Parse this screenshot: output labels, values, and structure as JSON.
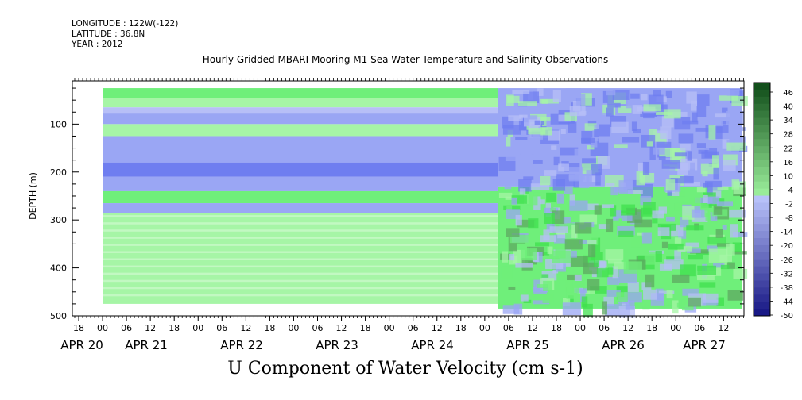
{
  "header": {
    "longitude": "LONGITUDE : 122W(-122)",
    "latitude": "LATITUDE : 36.8N",
    "year": "YEAR : 2012"
  },
  "chart_data": {
    "type": "heatmap",
    "title": "Hourly Gridded MBARI Mooring M1 Sea Water Temperature and Salinity Observations",
    "bottom_title": "U Component of Water Velocity (cm s-1)",
    "ylabel": "DEPTH (m)",
    "xlabel": "",
    "ylim": [
      500,
      10
    ],
    "y_ticks": [
      100,
      200,
      300,
      400,
      500
    ],
    "x_hour_labels": [
      "18",
      "00",
      "06",
      "12",
      "18",
      "00",
      "06",
      "12",
      "18",
      "00",
      "06",
      "12",
      "18",
      "00",
      "06",
      "12",
      "18",
      "00",
      "06",
      "12",
      "18",
      "00",
      "06",
      "12",
      "18",
      "00",
      "06",
      "12"
    ],
    "x_day_labels": [
      "APR 20",
      "APR 21",
      "APR 22",
      "APR 23",
      "APR 24",
      "APR 25",
      "APR 26",
      "APR 27"
    ],
    "colorbar": {
      "labels": [
        "46",
        "40",
        "34",
        "28",
        "22",
        "16",
        "10",
        "4",
        "-2",
        "-8",
        "-14",
        "-20",
        "-26",
        "-32",
        "-38",
        "-44",
        "-50"
      ],
      "min": -50,
      "max": 49,
      "step": 3
    },
    "profile_before_apr24_03h": [
      {
        "depth_range": [
          25,
          45
        ],
        "value": 10
      },
      {
        "depth_range": [
          45,
          65
        ],
        "value": 4
      },
      {
        "depth_range": [
          65,
          78
        ],
        "value": -2
      },
      {
        "depth_range": [
          78,
          100
        ],
        "value": -8
      },
      {
        "depth_range": [
          100,
          125
        ],
        "value": 4
      },
      {
        "depth_range": [
          125,
          180
        ],
        "value": -8
      },
      {
        "depth_range": [
          180,
          210
        ],
        "value": -14
      },
      {
        "depth_range": [
          210,
          240
        ],
        "value": -8
      },
      {
        "depth_range": [
          240,
          265
        ],
        "value": 10
      },
      {
        "depth_range": [
          265,
          285
        ],
        "value": -8
      },
      {
        "depth_range": [
          285,
          475
        ],
        "value": 4
      }
    ],
    "regime_after_apr24_03h": [
      {
        "depth_range": [
          25,
          230
        ],
        "value": -8
      },
      {
        "depth_range": [
          230,
          485
        ],
        "value": 10
      }
    ]
  }
}
